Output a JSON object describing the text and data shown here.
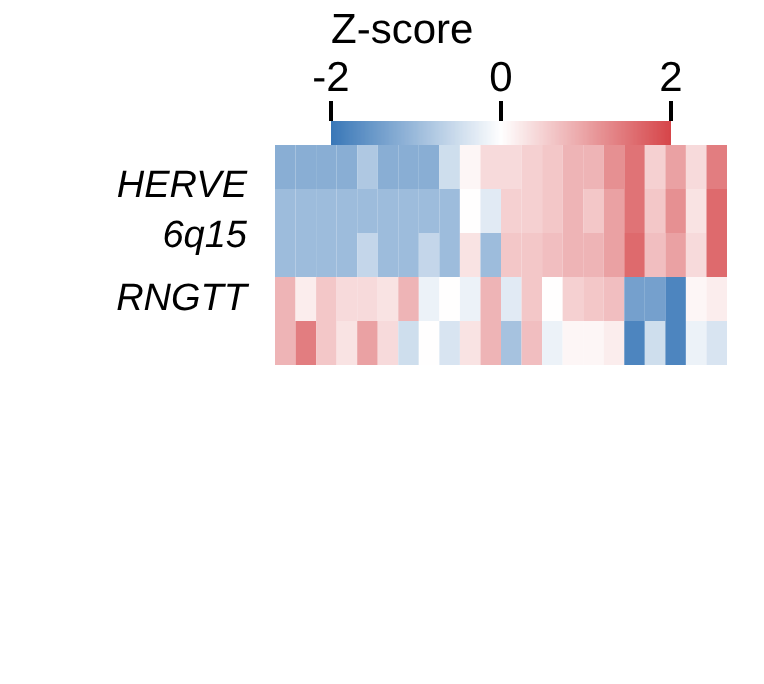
{
  "chart_data": {
    "type": "heatmap",
    "clabel": "Z-score",
    "clim": [
      -2,
      2
    ],
    "cticks": [
      -2,
      0,
      2
    ],
    "tick_labels": "y",
    "categories": [
      null,
      null,
      null,
      null,
      null,
      null,
      null,
      null,
      null,
      null,
      null,
      null,
      null,
      null,
      null,
      null,
      null,
      null,
      null,
      null,
      null,
      null
    ],
    "y_categories": [
      null,
      "HERVE\n6q15",
      null,
      "RNGTT",
      null
    ],
    "cells": [
      [
        -1.2,
        -1.2,
        -1.2,
        -1.2,
        -0.8,
        -1.2,
        -1.2,
        -1.2,
        -0.5,
        0.1,
        0.4,
        0.4,
        0.5,
        0.6,
        0.8,
        0.8,
        1.2,
        1.5,
        0.5,
        1.0,
        0.4,
        1.4
      ],
      [
        -1.0,
        -1.0,
        -1.0,
        -1.0,
        -1.0,
        -1.0,
        -1.0,
        -1.0,
        -1.0,
        0.0,
        -0.3,
        0.5,
        0.5,
        0.6,
        0.8,
        0.6,
        1.0,
        1.5,
        0.6,
        1.2,
        0.3,
        1.6
      ],
      [
        -1.0,
        -1.0,
        -1.0,
        -1.0,
        -0.6,
        -1.0,
        -1.0,
        -0.6,
        -1.0,
        0.3,
        -1.0,
        0.6,
        0.6,
        0.7,
        0.8,
        0.8,
        1.0,
        1.6,
        0.7,
        1.0,
        0.4,
        1.6
      ],
      [
        0.8,
        0.2,
        0.6,
        0.4,
        0.4,
        0.3,
        0.8,
        -0.2,
        0.0,
        -0.2,
        0.8,
        -0.3,
        0.6,
        0.0,
        0.5,
        0.6,
        0.7,
        -1.4,
        -1.4,
        -1.8,
        0.1,
        0.2
      ],
      [
        0.8,
        1.4,
        0.6,
        0.3,
        1.0,
        0.4,
        -0.5,
        0.0,
        -0.4,
        0.3,
        0.8,
        -0.9,
        0.7,
        -0.2,
        0.1,
        0.1,
        0.2,
        -1.8,
        -0.5,
        -1.8,
        -0.2,
        -0.4
      ]
    ]
  }
}
